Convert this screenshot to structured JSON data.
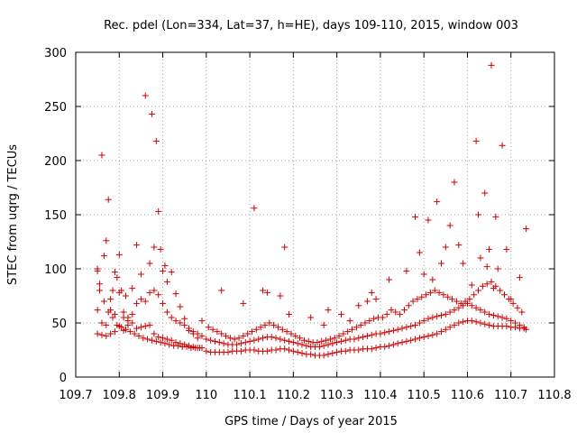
{
  "chart_data": {
    "type": "scatter",
    "title": "Rec. pdel (Lon=334, Lat=37, h=HE), days 109-110, 2015, window 003",
    "xlabel": "GPS time / Days of year 2015",
    "ylabel": "STEC from uqrg / TECUs",
    "xlim": [
      109.7,
      110.8
    ],
    "ylim": [
      0,
      300
    ],
    "xticks": [
      109.7,
      109.8,
      109.9,
      110,
      110.1,
      110.2,
      110.3,
      110.4,
      110.5,
      110.6,
      110.7,
      110.8
    ],
    "xtick_labels": [
      "109.7",
      "109.8",
      "109.9",
      "110",
      "110.1",
      "110.2",
      "110.3",
      "110.4",
      "110.5",
      "110.6",
      "110.7",
      "110.8"
    ],
    "yticks": [
      0,
      50,
      100,
      150,
      200,
      250,
      300
    ],
    "ytick_labels": [
      "0",
      "50",
      "100",
      "150",
      "200",
      "250",
      "300"
    ],
    "grid": true,
    "marker": "+",
    "color": "#cc0000",
    "series": [
      {
        "x": [
          109.75,
          109.75,
          109.75,
          109.755,
          109.76,
          109.765,
          109.77,
          109.775,
          109.78,
          109.785,
          109.79,
          109.795,
          109.8,
          109.805,
          109.81,
          109.815,
          109.82,
          109.83,
          109.84,
          109.85,
          109.86,
          109.87,
          109.875,
          109.88,
          109.885,
          109.89,
          109.895,
          109.9,
          109.905,
          109.91,
          109.92,
          109.93,
          109.94,
          109.95,
          109.96,
          109.97,
          109.98,
          109.99,
          109.75,
          109.76,
          109.77,
          109.78,
          109.79,
          109.8,
          109.81,
          109.82,
          109.83,
          109.84,
          109.85,
          109.86,
          109.87,
          109.88,
          109.89,
          109.9,
          109.91,
          109.92,
          109.93,
          109.94,
          109.95,
          109.96,
          109.97,
          109.98,
          109.99,
          109.76,
          109.77,
          109.78,
          109.79,
          109.8,
          109.81,
          109.82,
          109.83,
          109.84,
          109.85,
          109.86,
          109.87,
          109.88,
          109.89,
          109.9,
          109.91,
          109.92,
          109.93,
          109.94,
          109.95,
          109.96,
          109.97,
          109.98,
          109.99,
          109.755,
          109.765,
          109.775,
          109.785,
          109.795,
          109.805,
          109.815,
          109.825,
          109.835,
          109.845,
          109.855,
          109.865,
          109.875,
          109.885,
          109.895,
          109.905,
          109.915,
          109.925,
          109.935,
          109.945,
          109.955,
          109.965,
          109.975,
          109.985
        ],
        "y": [
          100,
          98,
          62,
          86,
          205,
          112,
          126,
          164,
          72,
          80,
          97,
          92,
          113,
          80,
          55,
          75,
          48,
          82,
          122,
          95,
          260,
          105,
          243,
          120,
          218,
          153,
          118,
          98,
          103,
          88,
          97,
          77,
          65,
          54,
          43,
          40,
          36,
          52,
          40,
          39,
          38,
          40,
          42,
          47,
          43,
          55,
          50,
          45,
          46,
          47,
          48,
          40,
          37,
          36,
          35,
          34,
          32,
          31,
          30,
          29,
          28,
          27,
          27,
          50,
          48,
          62,
          58,
          78,
          60,
          52,
          58,
          68,
          72,
          70,
          78,
          80,
          76,
          68,
          60,
          55,
          52,
          50,
          48,
          45,
          42,
          40,
          38,
          80,
          70,
          60,
          55,
          48,
          46,
          44,
          42,
          40,
          38,
          36,
          35,
          34,
          33,
          32,
          31,
          30,
          29,
          29,
          28,
          28,
          27,
          27,
          27
        ]
      },
      {
        "x": [
          110.0,
          110.01,
          110.02,
          110.03,
          110.04,
          110.05,
          110.06,
          110.07,
          110.08,
          110.09,
          110.1,
          110.11,
          110.12,
          110.13,
          110.14,
          110.15,
          110.16,
          110.17,
          110.18,
          110.19,
          110.2,
          110.21,
          110.22,
          110.23,
          110.24,
          110.25,
          110.26,
          110.27,
          110.28,
          110.29,
          110.3,
          110.31,
          110.32,
          110.33,
          110.34,
          110.35,
          110.36,
          110.37,
          110.38,
          110.39,
          110.0,
          110.01,
          110.02,
          110.03,
          110.04,
          110.05,
          110.06,
          110.07,
          110.08,
          110.09,
          110.1,
          110.11,
          110.12,
          110.13,
          110.14,
          110.15,
          110.16,
          110.17,
          110.18,
          110.19,
          110.2,
          110.21,
          110.22,
          110.23,
          110.24,
          110.25,
          110.26,
          110.27,
          110.28,
          110.29,
          110.3,
          110.31,
          110.32,
          110.33,
          110.34,
          110.35,
          110.36,
          110.37,
          110.38,
          110.39,
          110.005,
          110.015,
          110.025,
          110.035,
          110.045,
          110.055,
          110.065,
          110.075,
          110.085,
          110.095,
          110.105,
          110.115,
          110.125,
          110.135,
          110.145,
          110.155,
          110.165,
          110.175,
          110.185,
          110.195,
          110.205,
          110.215,
          110.225,
          110.235,
          110.245,
          110.255,
          110.265,
          110.275,
          110.285,
          110.295,
          110.305,
          110.315,
          110.325,
          110.335,
          110.345,
          110.355,
          110.365,
          110.375,
          110.385,
          110.395,
          110.035,
          110.085,
          110.11,
          110.13,
          110.14,
          110.17,
          110.18,
          110.19,
          110.24,
          110.27,
          110.28,
          110.31,
          110.33,
          110.35,
          110.37,
          110.38,
          110.39
        ],
        "y": [
          24,
          23,
          23,
          23,
          23,
          23,
          24,
          24,
          24,
          25,
          25,
          25,
          24,
          24,
          24,
          25,
          25,
          26,
          26,
          25,
          24,
          23,
          22,
          21,
          21,
          20,
          20,
          20,
          21,
          22,
          23,
          24,
          24,
          25,
          25,
          25,
          26,
          26,
          26,
          27,
          35,
          34,
          33,
          32,
          31,
          30,
          30,
          30,
          31,
          32,
          33,
          34,
          35,
          36,
          37,
          37,
          36,
          35,
          34,
          33,
          32,
          31,
          30,
          29,
          28,
          28,
          28,
          29,
          30,
          31,
          32,
          33,
          34,
          35,
          35,
          36,
          37,
          38,
          39,
          40,
          46,
          44,
          42,
          40,
          38,
          36,
          35,
          36,
          38,
          40,
          42,
          44,
          46,
          48,
          50,
          48,
          46,
          44,
          42,
          40,
          38,
          36,
          34,
          33,
          32,
          32,
          33,
          34,
          35,
          36,
          38,
          40,
          42,
          44,
          46,
          48,
          50,
          52,
          54,
          55,
          80,
          68,
          156,
          80,
          78,
          75,
          120,
          58,
          55,
          48,
          62,
          58,
          52,
          66,
          70,
          78,
          72
        ]
      },
      {
        "x": [
          110.4,
          110.41,
          110.42,
          110.43,
          110.44,
          110.45,
          110.46,
          110.47,
          110.48,
          110.49,
          110.5,
          110.51,
          110.52,
          110.53,
          110.54,
          110.55,
          110.56,
          110.57,
          110.58,
          110.59,
          110.6,
          110.61,
          110.62,
          110.63,
          110.64,
          110.65,
          110.66,
          110.67,
          110.68,
          110.69,
          110.7,
          110.71,
          110.72,
          110.73,
          110.735,
          110.4,
          110.41,
          110.42,
          110.43,
          110.44,
          110.45,
          110.46,
          110.47,
          110.48,
          110.49,
          110.5,
          110.51,
          110.52,
          110.53,
          110.54,
          110.55,
          110.56,
          110.57,
          110.58,
          110.59,
          110.6,
          110.61,
          110.62,
          110.63,
          110.64,
          110.65,
          110.66,
          110.67,
          110.68,
          110.69,
          110.7,
          110.71,
          110.72,
          110.73,
          110.405,
          110.415,
          110.425,
          110.435,
          110.445,
          110.455,
          110.465,
          110.475,
          110.485,
          110.495,
          110.505,
          110.515,
          110.525,
          110.535,
          110.545,
          110.555,
          110.565,
          110.575,
          110.585,
          110.595,
          110.605,
          110.615,
          110.625,
          110.635,
          110.645,
          110.655,
          110.665,
          110.675,
          110.685,
          110.695,
          110.705,
          110.715,
          110.725,
          110.42,
          110.46,
          110.48,
          110.49,
          110.5,
          110.51,
          110.52,
          110.53,
          110.54,
          110.55,
          110.56,
          110.57,
          110.58,
          110.59,
          110.61,
          110.62,
          110.625,
          110.63,
          110.64,
          110.645,
          110.65,
          110.655,
          110.66,
          110.665,
          110.67,
          110.68,
          110.69,
          110.7,
          110.72,
          110.735
        ],
        "y": [
          28,
          28,
          29,
          30,
          31,
          32,
          33,
          34,
          35,
          36,
          37,
          38,
          39,
          40,
          42,
          44,
          46,
          48,
          50,
          51,
          52,
          52,
          51,
          50,
          49,
          48,
          47,
          47,
          47,
          47,
          46,
          46,
          45,
          45,
          44,
          40,
          41,
          42,
          43,
          44,
          45,
          46,
          47,
          48,
          50,
          52,
          54,
          55,
          56,
          57,
          58,
          60,
          62,
          64,
          66,
          68,
          66,
          64,
          62,
          60,
          58,
          57,
          56,
          55,
          54,
          52,
          50,
          48,
          46,
          55,
          58,
          62,
          60,
          58,
          62,
          66,
          70,
          72,
          74,
          76,
          78,
          80,
          78,
          76,
          74,
          72,
          70,
          68,
          70,
          72,
          76,
          80,
          84,
          86,
          88,
          84,
          80,
          76,
          72,
          68,
          64,
          60,
          90,
          98,
          148,
          115,
          95,
          145,
          90,
          162,
          105,
          120,
          140,
          180,
          122,
          105,
          85,
          218,
          150,
          110,
          170,
          102,
          118,
          288,
          82,
          148,
          100,
          214,
          118,
          72,
          92,
          137
        ]
      }
    ]
  }
}
